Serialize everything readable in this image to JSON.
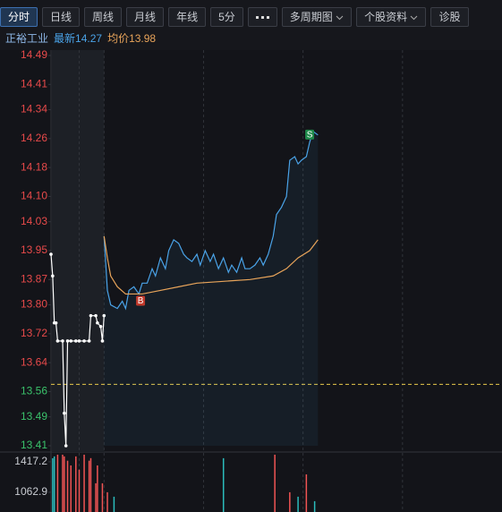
{
  "toolbar": {
    "tabs": [
      "分时",
      "日线",
      "周线",
      "月线",
      "年线",
      "5分"
    ],
    "menus": [
      "多周期图",
      "个股资料"
    ],
    "last": "诊股"
  },
  "info": {
    "name": "正裕工业",
    "latest_label": "最新",
    "latest": "14.27",
    "avg_label": "均价",
    "avg": "13.98"
  },
  "chart_data": {
    "type": "line",
    "xlim": [
      -32,
      240
    ],
    "xticks": [
      -15,
      0,
      60,
      120,
      180
    ],
    "ylim": [
      13.41,
      14.49
    ],
    "yticks": [
      14.49,
      14.41,
      14.34,
      14.26,
      14.18,
      {
        "value": 14.1,
        "label": "14.10"
      },
      14.03,
      13.95,
      13.87,
      {
        "value": 13.8,
        "label": "13.80"
      },
      13.72,
      13.64,
      13.56,
      13.49,
      13.41
    ],
    "ref_line": 13.58,
    "series": [
      {
        "color": "#ffffff",
        "x": [
          -32,
          -31,
          -30,
          -29,
          -28,
          -25,
          -24,
          -23,
          -22,
          -20,
          -17,
          -15,
          -12,
          -9,
          -8,
          -5,
          -4,
          -2,
          -1,
          0
        ],
        "values": [
          13.94,
          13.88,
          13.75,
          13.75,
          13.7,
          13.7,
          13.5,
          13.41,
          13.7,
          13.7,
          13.7,
          13.7,
          13.7,
          13.7,
          13.77,
          13.77,
          13.75,
          13.74,
          13.7,
          13.77
        ]
      },
      {
        "color": "#4aa3e8",
        "x": [
          0,
          2,
          4,
          8,
          11,
          13,
          15,
          18,
          21,
          23,
          26,
          29,
          31,
          34,
          37,
          39,
          42,
          45,
          48,
          50,
          53,
          56,
          58,
          61,
          64,
          66,
          69,
          72,
          75,
          77,
          80,
          83,
          85,
          88,
          91,
          94,
          96,
          99,
          102,
          104,
          107,
          110,
          112,
          115,
          117,
          119,
          122,
          124,
          126,
          129
        ],
        "values": [
          13.99,
          13.84,
          13.8,
          13.79,
          13.81,
          13.79,
          13.84,
          13.85,
          13.83,
          13.86,
          13.86,
          13.9,
          13.88,
          13.93,
          13.9,
          13.95,
          13.98,
          13.97,
          13.94,
          13.93,
          13.92,
          13.94,
          13.91,
          13.95,
          13.92,
          13.94,
          13.9,
          13.93,
          13.89,
          13.91,
          13.89,
          13.93,
          13.9,
          13.9,
          13.91,
          13.93,
          13.91,
          13.94,
          13.99,
          14.05,
          14.07,
          14.1,
          14.2,
          14.21,
          14.19,
          14.2,
          14.21,
          14.25,
          14.28,
          14.27
        ]
      },
      {
        "color": "#e8a45a",
        "x": [
          0,
          2,
          4,
          8,
          13,
          23,
          34,
          45,
          56,
          72,
          88,
          102,
          110,
          117,
          124,
          129
        ],
        "values": [
          13.99,
          13.93,
          13.88,
          13.85,
          13.83,
          13.83,
          13.84,
          13.85,
          13.86,
          13.865,
          13.87,
          13.88,
          13.9,
          13.93,
          13.95,
          13.98
        ]
      }
    ],
    "markers": [
      {
        "label": "B",
        "x": 22,
        "value": 13.81,
        "color": "#c0392b"
      },
      {
        "label": "S",
        "x": 124,
        "value": 14.27,
        "color": "#1e8a4a"
      }
    ],
    "volume": {
      "ylim": [
        833,
        1510
      ],
      "yticks": [
        1417.2,
        1062.9
      ],
      "series": [
        {
          "color": "#f05454",
          "x": [
            -28,
            -25,
            -24,
            -22,
            -20,
            -17,
            -15,
            -12,
            -9,
            -8,
            -5,
            -4,
            -1,
            2,
            103,
            112,
            122
          ],
          "values": [
            1500,
            1500,
            1480,
            1430,
            1375,
            1480,
            1325,
            1500,
            1430,
            1460,
            1167,
            1375,
            1167,
            1063,
            1500,
            1063,
            1271
          ]
        },
        {
          "color": "#2bbcbc",
          "x": [
            -31,
            -30,
            6,
            72,
            117,
            127
          ],
          "values": [
            1459,
            1480,
            1011,
            1459,
            1011,
            959
          ]
        }
      ]
    }
  }
}
